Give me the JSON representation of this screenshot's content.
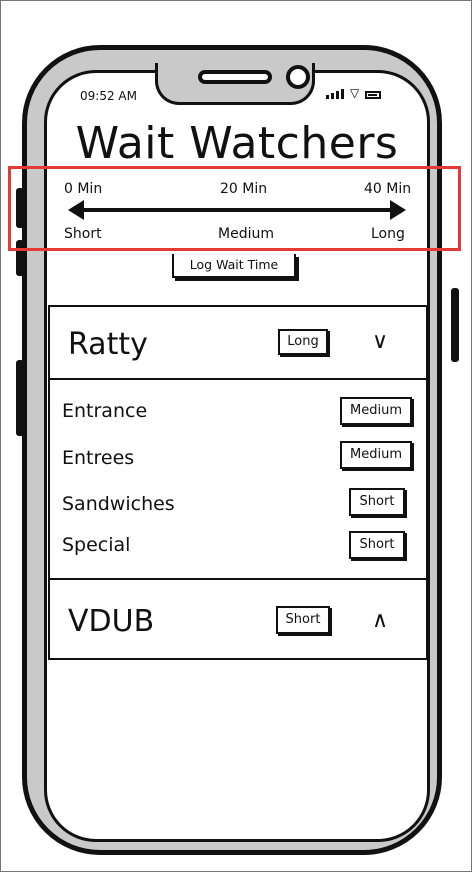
{
  "status_bar": {
    "time": "09:52 AM"
  },
  "app": {
    "title": "Wait Watchers"
  },
  "legend": {
    "min_label": "0 Min",
    "mid_label": "20 Min",
    "max_label": "40 Min",
    "short_label": "Short",
    "medium_label": "Medium",
    "long_label": "Long"
  },
  "log_button": {
    "label": "Log Wait Time"
  },
  "locations": [
    {
      "name": "Ratty",
      "wait": "Long",
      "chevron": "chevron-down-icon",
      "chevron_glyph": "∨",
      "stations": [
        {
          "name": "Entrance",
          "wait": "Medium"
        },
        {
          "name": "Entrees",
          "wait": "Medium"
        },
        {
          "name": "Sandwiches",
          "wait": "Short"
        },
        {
          "name": "Special",
          "wait": "Short"
        }
      ]
    },
    {
      "name": "VDUB",
      "wait": "Short",
      "chevron": "chevron-up-icon",
      "chevron_glyph": "∧"
    }
  ],
  "colors": {
    "highlight": "#e53935",
    "frame": "#c9c9c9",
    "ink": "#111111"
  }
}
